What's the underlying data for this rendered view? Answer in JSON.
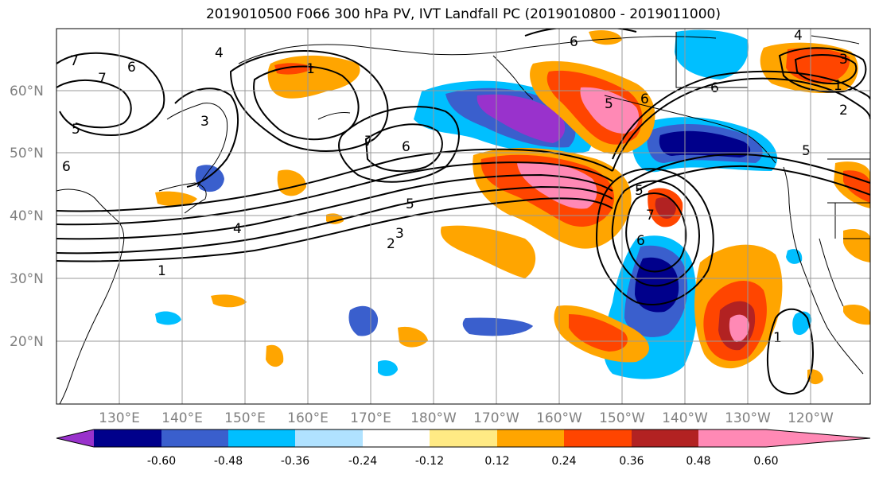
{
  "title": "2019010500 F066 300 hPa PV, IVT Landfall PC (2019010800 - 2019011000)",
  "lat_labels": [
    "60°N",
    "50°N",
    "40°N",
    "30°N",
    "20°N"
  ],
  "lon_labels": [
    "130°E",
    "140°E",
    "150°E",
    "160°E",
    "170°E",
    "180°W",
    "170°W",
    "160°W",
    "150°W",
    "140°W",
    "130°W",
    "120°W"
  ],
  "colorbar": {
    "colors": [
      "#9932cc",
      "#00008b",
      "#3a5fcd",
      "#00bfff",
      "#b0e2ff",
      "#ffffff",
      "#ffea84",
      "#ffa500",
      "#ff4500",
      "#b22222",
      "#ff89b5"
    ],
    "tick_labels": [
      "-0.60",
      "-0.48",
      "-0.36",
      "-0.24",
      "-0.12",
      "0.12",
      "0.24",
      "0.36",
      "0.48",
      "0.60"
    ]
  },
  "contour_labels": [
    "1",
    "2",
    "3",
    "4",
    "5",
    "6",
    "7"
  ]
}
